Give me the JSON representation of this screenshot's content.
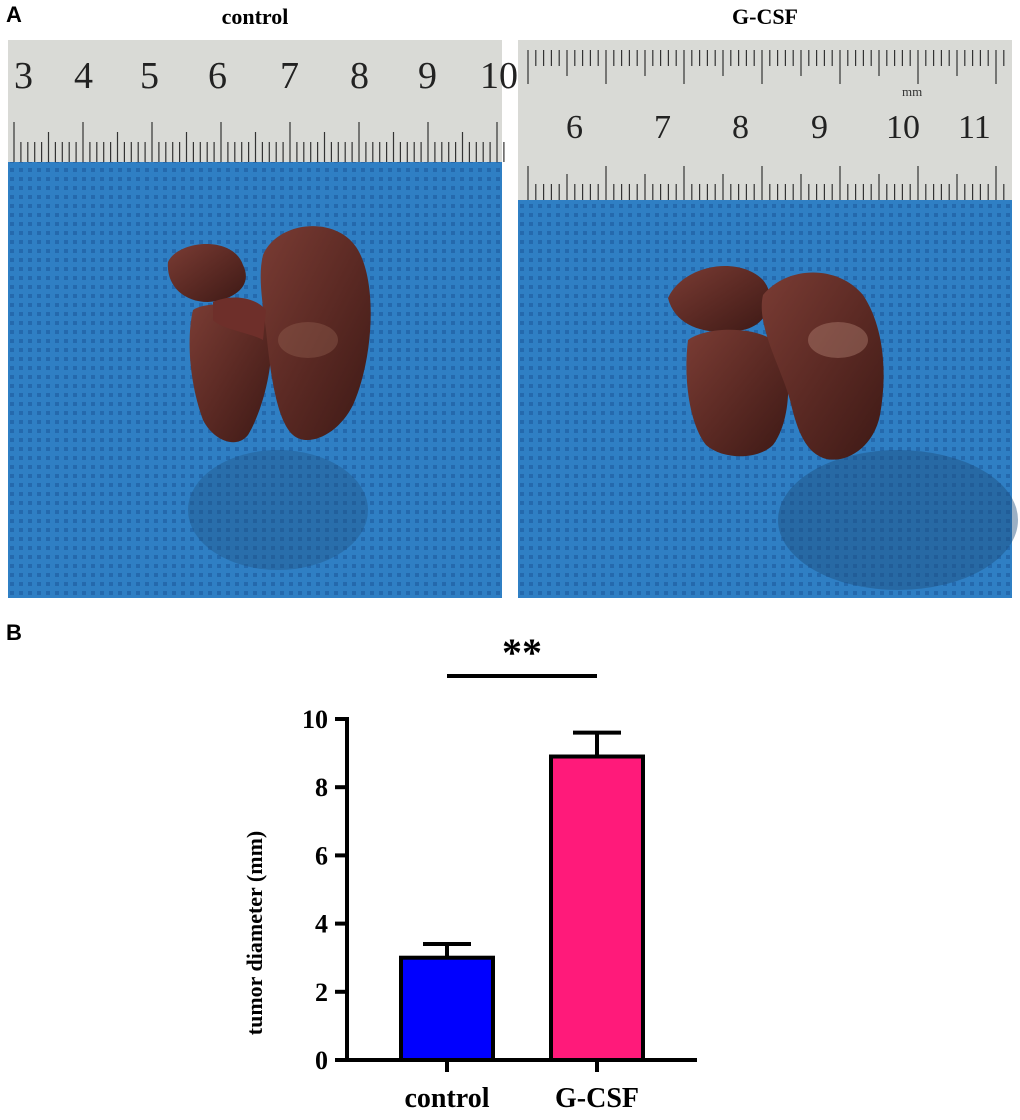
{
  "panel_a": {
    "letter": "A",
    "photos": [
      {
        "title": "control",
        "ruler_numbers": [
          "3",
          "4",
          "5",
          "6",
          "7",
          "8",
          "9",
          "10"
        ],
        "ruler_unit": ""
      },
      {
        "title": "G-CSF",
        "ruler_numbers": [
          "6",
          "7",
          "8",
          "9",
          "10",
          "11"
        ],
        "ruler_unit": "mm"
      }
    ],
    "colors": {
      "cloth": "#2f7fc4",
      "ruler": "#d9dad6",
      "tissue": "#5c2a24"
    }
  },
  "panel_b": {
    "letter": "B",
    "significance": "**"
  },
  "chart_data": {
    "type": "bar",
    "categories": [
      "control",
      "G-CSF"
    ],
    "values": [
      3.0,
      8.9
    ],
    "error_upper": [
      0.4,
      0.7
    ],
    "colors": [
      "#0000ff",
      "#ff1a7a"
    ],
    "xlabel": "",
    "ylabel": "tumor diameter (mm)",
    "ylim": [
      0,
      10
    ],
    "yticks": [
      0,
      2,
      4,
      6,
      8,
      10
    ],
    "grid": false,
    "legend": "none",
    "annotation": "**"
  }
}
